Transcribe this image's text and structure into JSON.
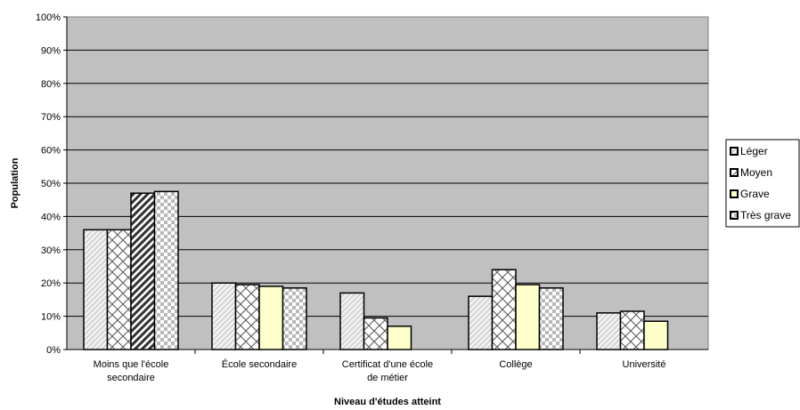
{
  "chart_data": {
    "type": "bar",
    "title": "",
    "xlabel": "Niveau d'études atteint",
    "ylabel": "Population",
    "ylim": [
      0,
      100
    ],
    "yticks": [
      "0%",
      "10%",
      "20%",
      "30%",
      "40%",
      "50%",
      "60%",
      "70%",
      "80%",
      "90%",
      "100%"
    ],
    "grid": true,
    "legend_position": "right",
    "categories": [
      [
        "Moins que l'école",
        "secondaire"
      ],
      [
        "École secondaire"
      ],
      [
        "Certificat d'une école",
        "de métier"
      ],
      [
        "Collège"
      ],
      [
        "Université"
      ]
    ],
    "series": [
      {
        "name": "Léger",
        "pattern": "diagonal-hatch",
        "values": [
          36,
          20,
          17,
          16,
          11
        ]
      },
      {
        "name": "Moyen",
        "pattern": "crosshatch",
        "values": [
          36,
          19.5,
          9.5,
          24,
          11.5
        ]
      },
      {
        "name": "Grave",
        "pattern": "dark-diagonal",
        "values": [
          47,
          19,
          7,
          19.5,
          8.5
        ]
      },
      {
        "name": "Très grave",
        "pattern": "checker",
        "values": [
          47.5,
          18.5,
          null,
          18.5,
          null
        ]
      }
    ],
    "colors": {
      "plot_background": "#c0c0c0",
      "grave_fill": "#ffffcc",
      "bar_stroke": "#000000"
    }
  }
}
